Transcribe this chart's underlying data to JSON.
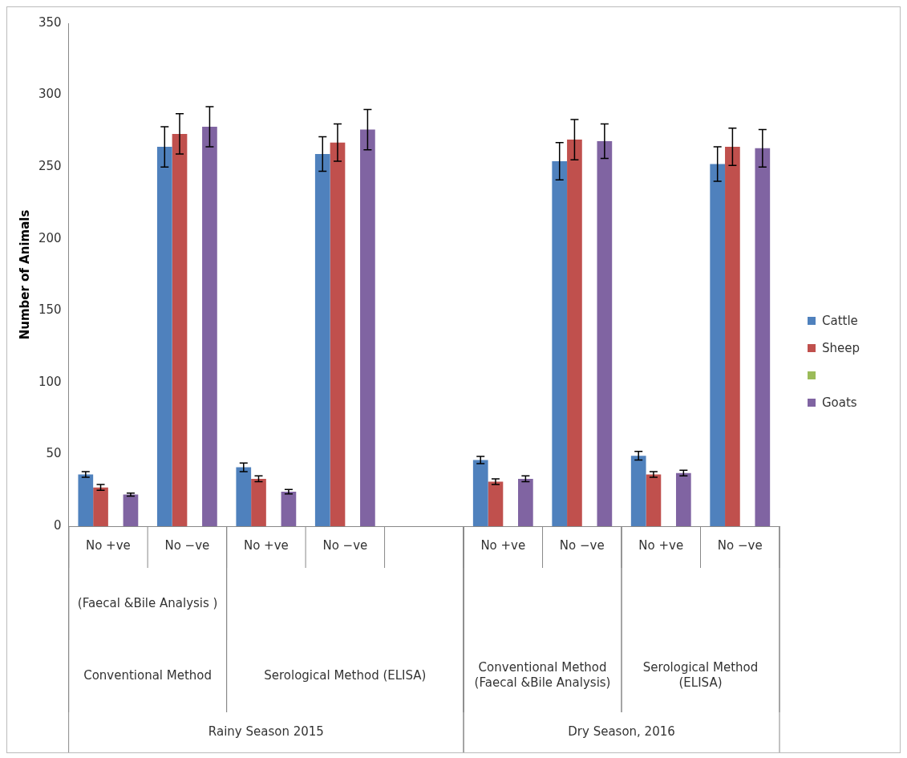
{
  "chart_data": {
    "type": "bar",
    "ylabel": "Number of Animals",
    "categories": [
      "No +ve",
      "No −ve",
      "No +ve",
      "No −ve",
      null,
      "No +ve",
      "No −ve",
      "No +ve",
      "No −ve"
    ],
    "series": [
      {
        "name": "Cattle",
        "color": "#4f81bd",
        "values": [
          36,
          264,
          41,
          259,
          null,
          46,
          254,
          49,
          252
        ],
        "errors": [
          2,
          14,
          3,
          12,
          null,
          2.5,
          13,
          3,
          12
        ]
      },
      {
        "name": "Sheep",
        "color": "#c0504d",
        "values": [
          27,
          273,
          33,
          267,
          null,
          31,
          269,
          36,
          264
        ],
        "errors": [
          2,
          14,
          2,
          13,
          null,
          2,
          14,
          2,
          13
        ]
      },
      {
        "color": "#9bbb59",
        "values": [
          null,
          null,
          null,
          null,
          null,
          null,
          null,
          null,
          null
        ]
      },
      {
        "name": "Goats",
        "color": "#8064a2",
        "values": [
          22,
          278,
          24,
          276,
          null,
          33,
          268,
          37,
          263
        ],
        "errors": [
          1,
          14,
          1.5,
          14,
          null,
          2,
          12,
          2,
          13
        ]
      }
    ],
    "ylim": [
      0,
      350
    ],
    "yticks": [
      0,
      50,
      100,
      150,
      200,
      250,
      300,
      350
    ],
    "grid": false,
    "legend": "right",
    "annotations": [
      "(Faecal &Bile Analysis )",
      "Conventional Method",
      "Serological Method (ELISA)",
      "Conventional Method (Faecal &Bile Analysis)",
      "Serological Method (ELISA)",
      "Rainy Season 2015",
      "Dry Season, 2016"
    ]
  }
}
